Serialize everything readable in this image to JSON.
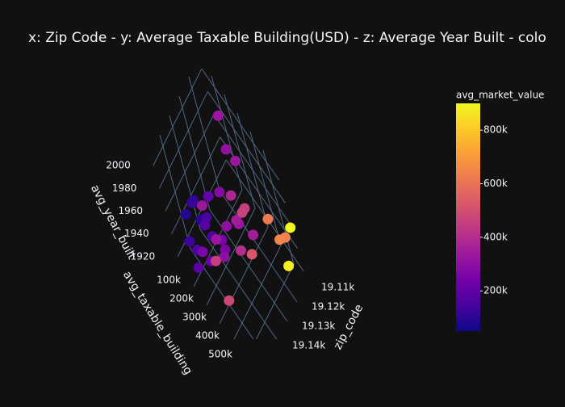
{
  "chart_data": {
    "type": "scatter3d",
    "title": "x: Zip Code - y: Average Taxable Building(USD) - z: Average Year Built - colo",
    "x_label": "zip_code",
    "y_label": "avg_taxable_building",
    "z_label": "avg_year_built",
    "colorbar_title": "avg_market_value",
    "x": [
      19130,
      19132,
      19134,
      19128,
      19140,
      19136,
      19125,
      19138,
      19142,
      19126,
      19120,
      19122,
      19118,
      19144,
      19146,
      19124,
      19115,
      19110,
      19112,
      19108,
      19105,
      19104,
      19102,
      19100,
      19107,
      19135,
      19139,
      19141,
      19127,
      19131,
      19116,
      19119,
      19113,
      19133,
      19129,
      19137,
      19143,
      19121
    ],
    "y": [
      120000,
      80000,
      150000,
      200000,
      60000,
      100000,
      250000,
      180000,
      120000,
      140000,
      300000,
      220000,
      280000,
      90000,
      150000,
      330000,
      350000,
      300000,
      260000,
      200000,
      420000,
      480000,
      520000,
      580000,
      560000,
      200000,
      260000,
      330000,
      190000,
      230000,
      240000,
      380000,
      330000,
      70000,
      110000,
      300000,
      200000,
      400000
    ],
    "z": [
      1940,
      1935,
      1945,
      1930,
      1950,
      1960,
      1945,
      1925,
      1932,
      1955,
      1950,
      1965,
      1940,
      1938,
      1928,
      1935,
      1960,
      1985,
      1992,
      2005,
      1945,
      1935,
      1940,
      1955,
      1930,
      1972,
      1940,
      1920,
      1918,
      1925,
      1955,
      1968,
      1930,
      1952,
      1920,
      1962,
      1945,
      1938
    ],
    "marker_values": [
      150000,
      100000,
      180000,
      250000,
      90000,
      120000,
      300000,
      220000,
      160000,
      210000,
      350000,
      280000,
      320000,
      130000,
      190000,
      400000,
      450000,
      330000,
      310000,
      330000,
      620000,
      650000,
      640000,
      900000,
      880000,
      330000,
      450000,
      480000,
      260000,
      300000,
      380000,
      460000,
      350000,
      110000,
      160000,
      330000,
      260000,
      520000
    ],
    "xlim": [
      19100,
      19150
    ],
    "ylim": [
      0,
      600000
    ],
    "zlim": [
      1910,
      2010
    ],
    "colorbar_lim": [
      50000,
      900000
    ],
    "xticks": [
      {
        "value": 19110,
        "label": "19.11k"
      },
      {
        "value": 19120,
        "label": "19.12k"
      },
      {
        "value": 19130,
        "label": "19.13k"
      },
      {
        "value": 19140,
        "label": "19.14k"
      }
    ],
    "yticks": [
      {
        "value": 100000,
        "label": "100k"
      },
      {
        "value": 200000,
        "label": "200k"
      },
      {
        "value": 300000,
        "label": "300k"
      },
      {
        "value": 400000,
        "label": "400k"
      },
      {
        "value": 500000,
        "label": "500k"
      }
    ],
    "zticks": [
      1920,
      1940,
      1960,
      1980,
      2000
    ],
    "colorbar_ticks": [
      {
        "value": 200000,
        "label": "200k"
      },
      {
        "value": 400000,
        "label": "400k"
      },
      {
        "value": 600000,
        "label": "600k"
      },
      {
        "value": 800000,
        "label": "800k"
      }
    ],
    "colorscale": [
      "#0d0887",
      "#46039f",
      "#7201a8",
      "#9c179e",
      "#bd3786",
      "#d8576b",
      "#ed7953",
      "#fb9f3a",
      "#fdca26",
      "#f0f921"
    ],
    "grid": true
  }
}
